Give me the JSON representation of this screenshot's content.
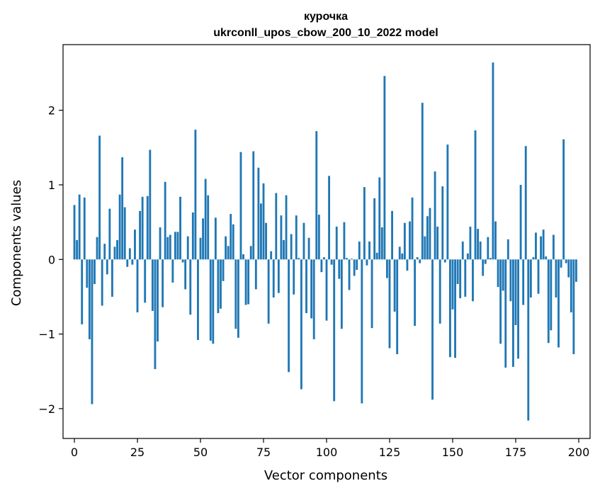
{
  "chart_data": {
    "type": "bar",
    "title": "курочка",
    "subtitle": "ukrconll_upos_cbow_200_10_2022 model",
    "xlabel": "Vector components",
    "ylabel": "Components values",
    "xlim": [
      -4.5,
      204.5
    ],
    "ylim": [
      -2.4,
      2.88
    ],
    "xticks": [
      0,
      25,
      50,
      75,
      100,
      125,
      150,
      175,
      200
    ],
    "xtick_labels": [
      "0",
      "25",
      "50",
      "75",
      "100",
      "125",
      "150",
      "175",
      "200"
    ],
    "yticks": [
      -2,
      -1,
      0,
      1,
      2
    ],
    "ytick_labels": [
      "−2",
      "−1",
      "0",
      "1",
      "2"
    ],
    "bar_color": "#1f77b4",
    "series": [
      {
        "name": "курочка",
        "x": [
          0,
          1,
          2,
          3,
          4,
          5,
          6,
          7,
          8,
          9,
          10,
          11,
          12,
          13,
          14,
          15,
          16,
          17,
          18,
          19,
          20,
          21,
          22,
          23,
          24,
          25,
          26,
          27,
          28,
          29,
          30,
          31,
          32,
          33,
          34,
          35,
          36,
          37,
          38,
          39,
          40,
          41,
          42,
          43,
          44,
          45,
          46,
          47,
          48,
          49,
          50,
          51,
          52,
          53,
          54,
          55,
          56,
          57,
          58,
          59,
          60,
          61,
          62,
          63,
          64,
          65,
          66,
          67,
          68,
          69,
          70,
          71,
          72,
          73,
          74,
          75,
          76,
          77,
          78,
          79,
          80,
          81,
          82,
          83,
          84,
          85,
          86,
          87,
          88,
          89,
          90,
          91,
          92,
          93,
          94,
          95,
          96,
          97,
          98,
          99,
          100,
          101,
          102,
          103,
          104,
          105,
          106,
          107,
          108,
          109,
          110,
          111,
          112,
          113,
          114,
          115,
          116,
          117,
          118,
          119,
          120,
          121,
          122,
          123,
          124,
          125,
          126,
          127,
          128,
          129,
          130,
          131,
          132,
          133,
          134,
          135,
          136,
          137,
          138,
          139,
          140,
          141,
          142,
          143,
          144,
          145,
          146,
          147,
          148,
          149,
          150,
          151,
          152,
          153,
          154,
          155,
          156,
          157,
          158,
          159,
          160,
          161,
          162,
          163,
          164,
          165,
          166,
          167,
          168,
          169,
          170,
          171,
          172,
          173,
          174,
          175,
          176,
          177,
          178,
          179,
          180,
          181,
          182,
          183,
          184,
          185,
          186,
          187,
          188,
          189,
          190,
          191,
          192,
          193,
          194,
          195,
          196,
          197,
          198,
          199
        ],
        "values": [
          0.73,
          0.26,
          0.87,
          -0.87,
          0.83,
          -0.38,
          -1.07,
          -1.94,
          -0.33,
          0.3,
          1.66,
          -0.62,
          0.21,
          -0.2,
          0.68,
          -0.5,
          0.17,
          0.26,
          0.87,
          1.37,
          0.7,
          -0.1,
          0.15,
          -0.07,
          0.4,
          -0.71,
          0.65,
          0.84,
          -0.58,
          0.85,
          1.47,
          -0.69,
          -1.47,
          -1.1,
          0.43,
          -0.64,
          1.04,
          0.3,
          0.33,
          -0.31,
          0.37,
          0.37,
          0.84,
          -0.04,
          -0.4,
          0.31,
          -0.74,
          0.63,
          1.74,
          -1.08,
          0.29,
          0.55,
          1.08,
          0.86,
          -1.09,
          -1.13,
          0.56,
          -0.72,
          -0.66,
          -0.29,
          0.31,
          0.18,
          0.61,
          0.47,
          -0.93,
          -1.05,
          1.44,
          0.07,
          -0.61,
          -0.6,
          0.18,
          1.45,
          -0.4,
          1.23,
          0.75,
          1.02,
          0.49,
          -0.86,
          0.11,
          -0.51,
          0.89,
          -0.45,
          0.59,
          0.26,
          0.86,
          -1.51,
          0.34,
          -0.47,
          0.59,
          0.02,
          -1.74,
          0.49,
          -0.72,
          0.29,
          -0.79,
          -1.07,
          1.72,
          0.6,
          -0.17,
          0.03,
          -0.82,
          1.12,
          -0.07,
          -1.9,
          0.44,
          -0.26,
          -0.93,
          0.5,
          0.02,
          -0.41,
          0.01,
          -0.22,
          -0.14,
          0.24,
          -1.93,
          0.97,
          -0.08,
          0.24,
          -0.92,
          0.82,
          0.09,
          1.1,
          0.43,
          2.46,
          -0.25,
          -1.19,
          0.65,
          -0.7,
          -1.27,
          0.17,
          0.08,
          0.49,
          -0.15,
          0.51,
          0.83,
          -0.89,
          0.03,
          -0.05,
          2.1,
          0.31,
          0.58,
          0.69,
          -1.88,
          1.18,
          0.44,
          -0.86,
          0.98,
          -0.04,
          1.54,
          -1.31,
          -0.67,
          -1.32,
          -0.33,
          -0.52,
          0.24,
          -0.5,
          0.08,
          0.44,
          -0.56,
          1.73,
          0.41,
          0.24,
          -0.22,
          -0.06,
          0.3,
          0.02,
          2.64,
          0.51,
          -0.37,
          -1.13,
          -0.42,
          -1.45,
          0.27,
          -0.56,
          -1.44,
          -0.88,
          -1.33,
          1.0,
          -0.61,
          1.52,
          -2.16,
          -0.51,
          0.03,
          0.36,
          -0.46,
          0.31,
          0.4,
          0.04,
          -1.12,
          -0.95,
          0.33,
          -0.51,
          -1.18,
          -0.11,
          1.61,
          -0.05,
          -0.24,
          -0.71,
          -1.27,
          -0.3
        ]
      }
    ]
  }
}
